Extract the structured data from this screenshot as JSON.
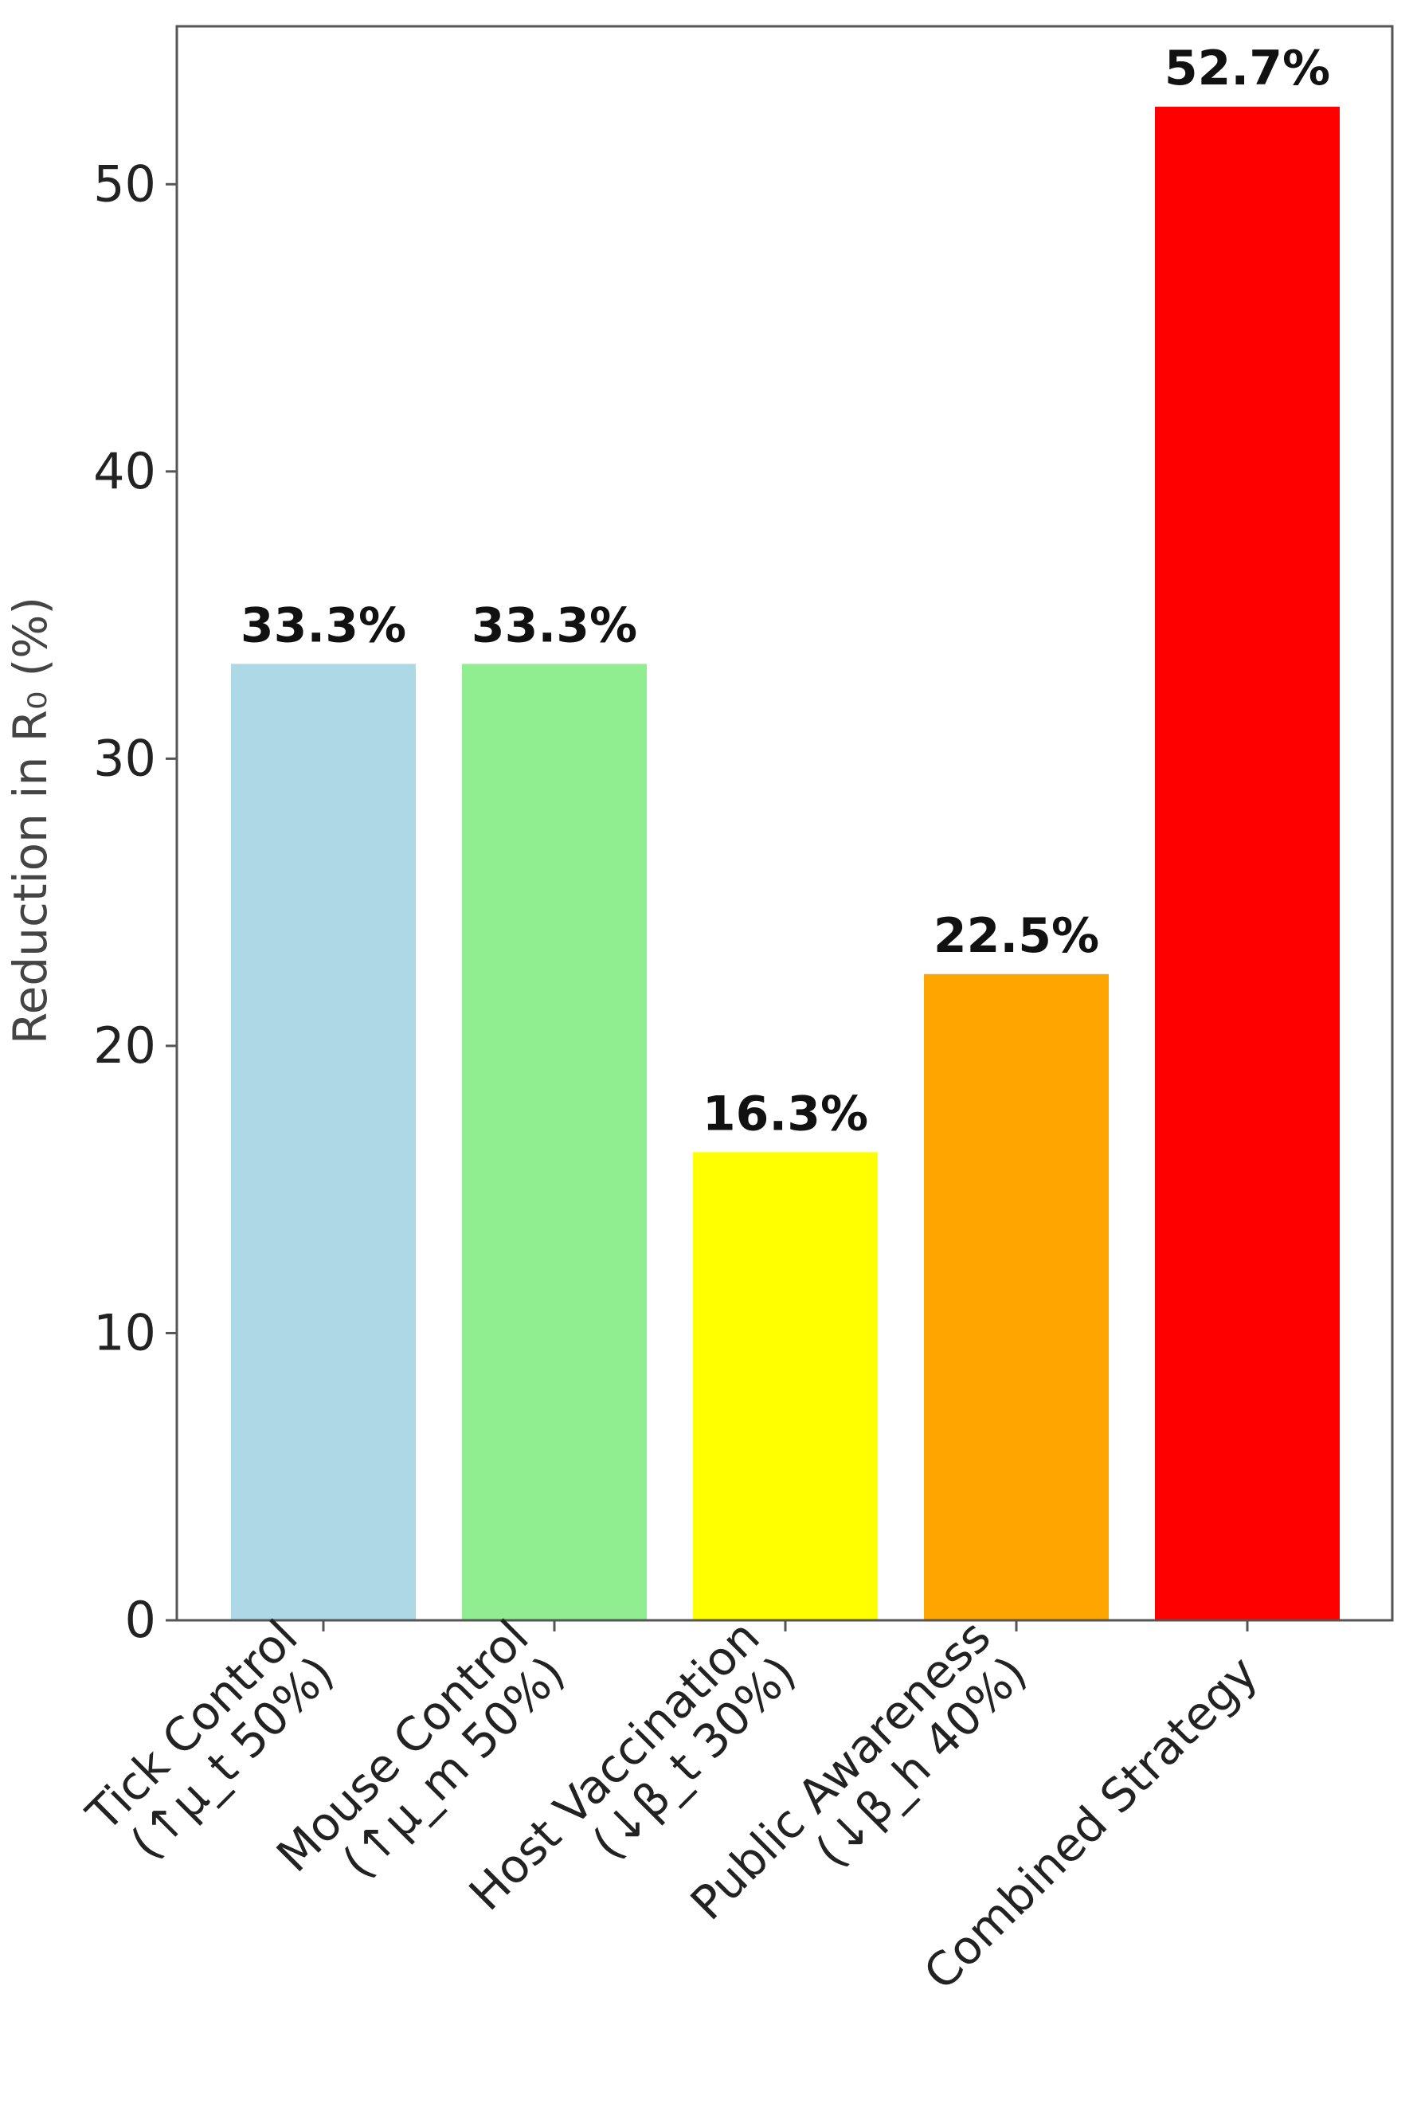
{
  "chart_data": {
    "type": "bar",
    "title": "",
    "xlabel": "",
    "ylabel": "Reduction in R₀ (%)",
    "ylim": [
      0,
      55.5
    ],
    "yticks": [
      0,
      10,
      20,
      30,
      40,
      50
    ],
    "grid": false,
    "categories": [
      [
        "Tick Control",
        "(↑μ_t 50%)"
      ],
      [
        "Mouse Control",
        "(↑μ_m 50%)"
      ],
      [
        "Host Vaccination",
        "(↓β_t 30%)"
      ],
      [
        "Public Awareness",
        "(↓β_h 40%)"
      ],
      [
        "Combined Strategy"
      ]
    ],
    "values": [
      33.3,
      33.3,
      16.3,
      22.5,
      52.7
    ],
    "data_labels": [
      "33.3%",
      "33.3%",
      "16.3%",
      "22.5%",
      "52.7%"
    ],
    "colors": [
      "#add8e6",
      "#90ee90",
      "#ffff00",
      "#ffa500",
      "#ff0000"
    ]
  }
}
